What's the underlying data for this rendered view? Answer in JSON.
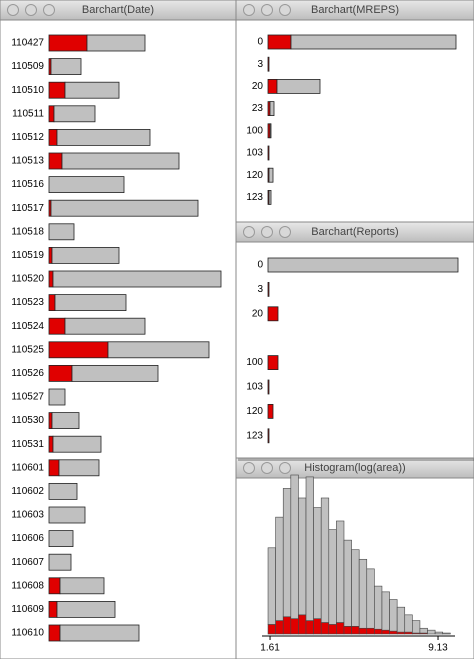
{
  "chart_data": [
    {
      "type": "bar",
      "title": "Barchart(Date)",
      "categories": [
        "110427",
        "110509",
        "110510",
        "110511",
        "110512",
        "110513",
        "110516",
        "110517",
        "110518",
        "110519",
        "110520",
        "110523",
        "110524",
        "110525",
        "110526",
        "110527",
        "110530",
        "110531",
        "110601",
        "110602",
        "110603",
        "110606",
        "110607",
        "110608",
        "110609",
        "110610"
      ],
      "series": [
        {
          "color": "#e00000",
          "values": [
            38,
            2,
            16,
            5,
            8,
            13,
            0,
            2,
            0,
            3,
            4,
            6,
            16,
            59,
            23,
            0,
            3,
            4,
            10,
            0,
            0,
            0,
            0,
            11,
            8,
            11
          ]
        },
        {
          "color": "#c0c0c0",
          "values": [
            58,
            30,
            54,
            41,
            93,
            117,
            75,
            147,
            25,
            67,
            168,
            71,
            80,
            101,
            86,
            16,
            27,
            48,
            40,
            28,
            36,
            24,
            22,
            44,
            58,
            79
          ]
        }
      ]
    },
    {
      "type": "bar",
      "title": "Barchart(MREPS)",
      "categories": [
        "0",
        "3",
        "20",
        "23",
        "100",
        "103",
        "120",
        "123"
      ],
      "series": [
        {
          "color": "#e00000",
          "values": [
            23,
            1,
            9,
            2,
            2,
            1,
            1,
            1
          ]
        },
        {
          "color": "#c0c0c0",
          "values": [
            165,
            0,
            43,
            4,
            1,
            0,
            4,
            2
          ]
        }
      ]
    },
    {
      "type": "bar",
      "title": "Barchart(Reports)",
      "categories": [
        "0",
        "3",
        "20",
        null,
        "100",
        "103",
        "120",
        "123"
      ],
      "series": [
        {
          "color": "#e00000",
          "values": [
            0,
            1,
            10,
            0,
            10,
            1,
            5,
            1
          ]
        },
        {
          "color": "#c0c0c0",
          "values": [
            190,
            0,
            0,
            0,
            0,
            0,
            0,
            0
          ]
        }
      ]
    },
    {
      "type": "histogram",
      "title": "Histogram(log(area))",
      "bins": [
        1.52,
        1.86,
        2.2,
        2.54,
        2.88,
        3.22,
        3.56,
        3.9,
        4.24,
        4.58,
        4.92,
        5.26,
        5.6,
        5.94,
        6.28,
        6.62,
        6.96,
        7.3,
        7.64,
        7.98,
        8.32,
        8.66,
        9.0,
        9.34,
        9.68
      ],
      "series": [
        {
          "color": "#e00000",
          "values": [
            10,
            14,
            18,
            16,
            20,
            14,
            16,
            12,
            10,
            12,
            8,
            8,
            6,
            6,
            5,
            4,
            3,
            2,
            2,
            1,
            1,
            0,
            0,
            0
          ]
        },
        {
          "color": "#c0c0c0",
          "values": [
            80,
            108,
            134,
            150,
            122,
            150,
            116,
            130,
            99,
            106,
            90,
            80,
            72,
            62,
            45,
            40,
            33,
            26,
            18,
            13,
            5,
            4,
            2,
            1
          ]
        }
      ],
      "xlim": [
        1.25,
        9.89
      ],
      "xticks": [
        1.61,
        9.13
      ]
    }
  ]
}
